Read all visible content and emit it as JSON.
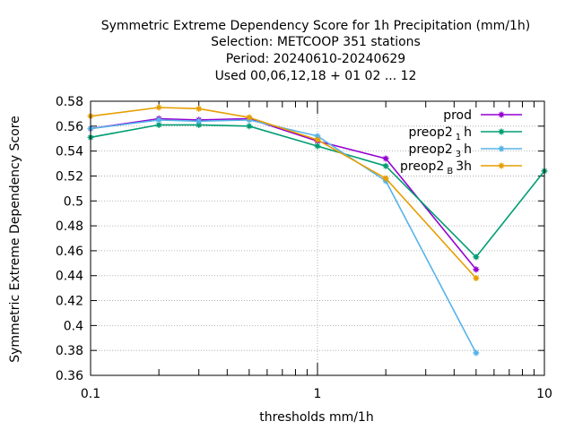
{
  "chart_data": {
    "type": "line",
    "title_lines": [
      "Symmetric Extreme Dependency Score  for 1h Precipitation (mm/1h)",
      "Selection: METCOOP    351 stations",
      "Period: 20240610-20240629",
      "Used  00,06,12,18 + 01 02 ... 12"
    ],
    "xlabel": "thresholds mm/1h",
    "ylabel": "Symmetric Extreme Dependency Score",
    "x_scale": "log",
    "xlim": [
      0.1,
      10
    ],
    "ylim": [
      0.36,
      0.58
    ],
    "x_ticks": [
      0.1,
      1,
      10
    ],
    "x_tick_labels": [
      "0.1",
      "1",
      "10"
    ],
    "y_ticks": [
      0.36,
      0.38,
      0.4,
      0.42,
      0.44,
      0.46,
      0.48,
      0.5,
      0.52,
      0.54,
      0.56,
      0.58
    ],
    "y_tick_labels": [
      "0.36",
      "0.38",
      "0.4",
      "0.42",
      "0.44",
      "0.46",
      "0.48",
      "0.5",
      "0.52",
      "0.54",
      "0.56",
      "0.58"
    ],
    "grid": true,
    "legend_position": "top-right",
    "series": [
      {
        "name_main": "prod",
        "name_sub": "",
        "name_tail": "",
        "color": "#9400d3",
        "x": [
          0.1,
          0.2,
          0.3,
          0.5,
          1,
          2,
          5
        ],
        "y": [
          0.558,
          0.566,
          0.565,
          0.566,
          0.548,
          0.534,
          0.445
        ]
      },
      {
        "name_main": "preop2",
        "name_sub": "1",
        "name_tail": "h",
        "color": "#009e73",
        "x": [
          0.1,
          0.2,
          0.3,
          0.5,
          1,
          2,
          5,
          10
        ],
        "y": [
          0.551,
          0.561,
          0.561,
          0.56,
          0.544,
          0.528,
          0.455,
          0.524
        ]
      },
      {
        "name_main": "preop2",
        "name_sub": "3",
        "name_tail": "h",
        "color": "#56b4e9",
        "x": [
          0.1,
          0.2,
          0.3,
          0.5,
          1,
          2,
          5
        ],
        "y": [
          0.558,
          0.565,
          0.564,
          0.565,
          0.552,
          0.516,
          0.378
        ]
      },
      {
        "name_main": "preop2",
        "name_sub": "B",
        "name_tail": "3h",
        "color": "#e69f00",
        "x": [
          0.1,
          0.2,
          0.3,
          0.5,
          1,
          2,
          5
        ],
        "y": [
          0.568,
          0.575,
          0.574,
          0.567,
          0.549,
          0.518,
          0.438
        ]
      }
    ]
  }
}
